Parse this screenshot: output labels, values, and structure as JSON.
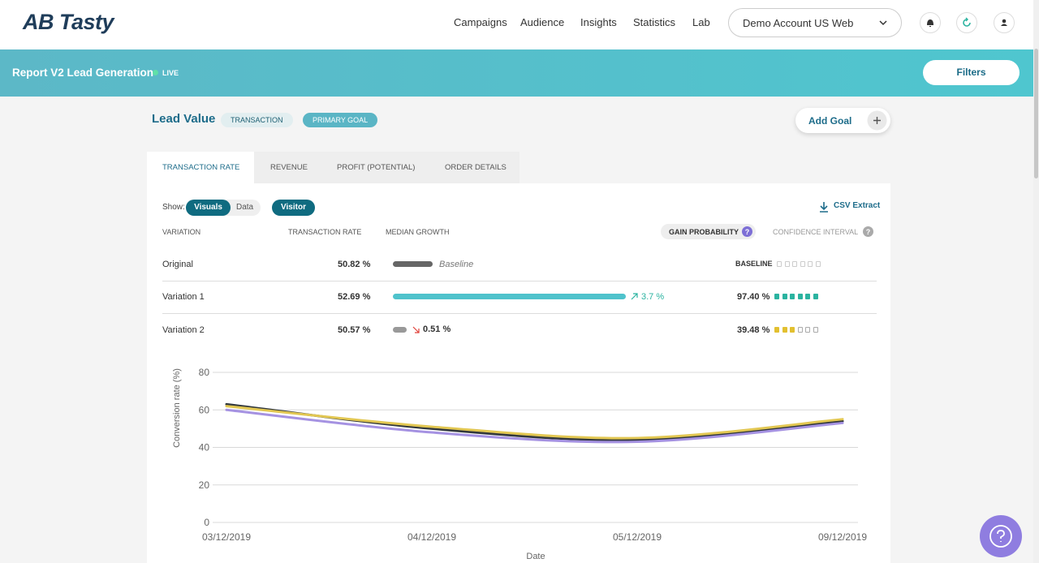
{
  "header": {
    "logo": "AB Tasty",
    "nav": [
      "Campaigns",
      "Audience",
      "Insights",
      "Statistics",
      "Lab"
    ],
    "account": "Demo Account US Web"
  },
  "banner": {
    "title": "Report V2 Lead Generation",
    "status": "LIVE",
    "filters": "Filters"
  },
  "goal": {
    "name": "Lead Value",
    "tags": [
      "TRANSACTION",
      "PRIMARY GOAL"
    ],
    "add_goal": "Add Goal"
  },
  "tabs": [
    "TRANSACTION RATE",
    "REVENUE",
    "PROFIT (POTENTIAL)",
    "ORDER DETAILS"
  ],
  "toolbar": {
    "show_label": "Show:",
    "options": [
      "Visuals",
      "Data"
    ],
    "segment": "Visitor",
    "extract": "CSV Extract"
  },
  "table": {
    "columns": [
      "VARIATION",
      "TRANSACTION RATE",
      "MEDIAN GROWTH",
      "GAIN PROBABILITY",
      "CONFIDENCE INTERVAL"
    ],
    "rows": [
      {
        "name": "Original",
        "rate": "50.82 %",
        "growth": "Baseline",
        "gain": "BASELINE"
      },
      {
        "name": "Variation 1",
        "rate": "52.69 %",
        "growth": "3.7 %",
        "gain": "97.40 %"
      },
      {
        "name": "Variation 2",
        "rate": "50.57 %",
        "growth": "0.51 %",
        "gain": "39.48 %"
      }
    ]
  },
  "chart_data": {
    "type": "line",
    "y_label": "Conversion rate (%)",
    "x_label": "Date",
    "categories": [
      "03/12/2019",
      "04/12/2019",
      "05/12/2019",
      "09/12/2019"
    ],
    "series": [
      {
        "color": "#32383d",
        "values": [
          63,
          50,
          44,
          54
        ]
      },
      {
        "color": "#e2c752",
        "values": [
          62,
          51,
          45,
          55
        ]
      },
      {
        "color": "#a592e2",
        "values": [
          60,
          48,
          43,
          53
        ]
      }
    ],
    "ylim": [
      0,
      80
    ],
    "yticks": [
      0,
      20,
      40,
      60,
      80
    ],
    "grid": true
  }
}
